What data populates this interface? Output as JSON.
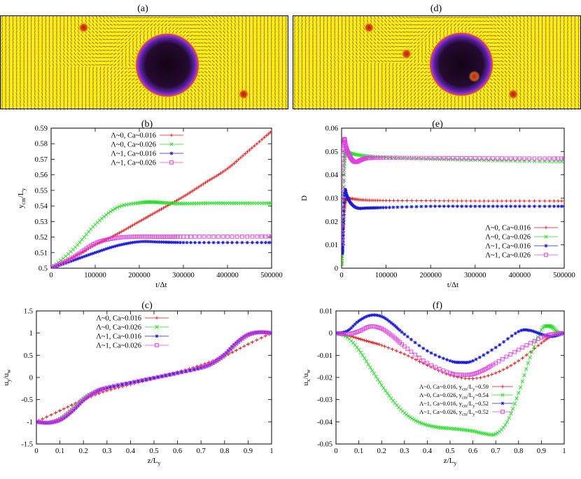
{
  "figure": {
    "panel_labels": [
      "(a)",
      "(d)",
      "(b)",
      "(e)",
      "(c)",
      "(f)"
    ],
    "colors": {
      "red": "#e01010",
      "green": "#22dd22",
      "blue": "#1c1cd6",
      "magenta": "#e040e0",
      "field_yellow": "#ffea1a",
      "arrow_dark": "#6b5a10",
      "droplet_core": "#120414",
      "droplet_rim": "#9a2fd6",
      "defect_red": "#c8141e"
    }
  },
  "chart_data": [
    {
      "id": "a",
      "type": "heatmap",
      "title": "(a)",
      "description_only_visual": true,
      "droplet": {
        "x": 0.58,
        "y": 0.53,
        "r": 0.105
      },
      "defects": [
        {
          "x": 0.29,
          "y": 0.13
        },
        {
          "x": 0.845,
          "y": 0.84
        }
      ]
    },
    {
      "id": "d",
      "type": "heatmap",
      "title": "(d)",
      "droplet": {
        "x": 0.585,
        "y": 0.52,
        "r": 0.105
      },
      "defects": [
        {
          "x": 0.265,
          "y": 0.13
        },
        {
          "x": 0.395,
          "y": 0.41
        },
        {
          "x": 0.63,
          "y": 0.65
        },
        {
          "x": 0.765,
          "y": 0.84
        }
      ]
    },
    {
      "id": "b",
      "type": "line",
      "title": "(b)",
      "xlabel": "t/Δt",
      "ylabel_main": "y",
      "ylabel_sub": "cm",
      "ylabel_tail": "/L",
      "ylabel_sub2": "y",
      "xlim": [
        0,
        500000
      ],
      "ylim": [
        0.5,
        0.59
      ],
      "xticks": [
        "0",
        "100000",
        "200000",
        "300000",
        "400000",
        "500000"
      ],
      "yticks": [
        "0.5",
        "0.51",
        "0.52",
        "0.53",
        "0.54",
        "0.55",
        "0.56",
        "0.57",
        "0.58",
        "0.59"
      ],
      "legend": "top-left",
      "series": [
        {
          "name": "Λ~0, Ca~0.016",
          "color": "red",
          "marker": "plus",
          "x": [
            0,
            50000,
            100000,
            150000,
            200000,
            250000,
            300000,
            350000,
            400000,
            450000,
            500000
          ],
          "y": [
            0.5,
            0.507,
            0.515,
            0.522,
            0.53,
            0.538,
            0.546,
            0.555,
            0.564,
            0.576,
            0.588
          ]
        },
        {
          "name": "Λ~0, Ca~0.026",
          "color": "green",
          "marker": "x",
          "x": [
            0,
            50000,
            100000,
            150000,
            200000,
            230000,
            260000,
            300000,
            350000,
            400000,
            450000,
            500000
          ],
          "y": [
            0.5,
            0.512,
            0.528,
            0.539,
            0.542,
            0.5425,
            0.542,
            0.5415,
            0.5418,
            0.5418,
            0.5418,
            0.5418
          ]
        },
        {
          "name": "Λ~1, Ca~0.016",
          "color": "blue",
          "marker": "star",
          "x": [
            0,
            50000,
            100000,
            150000,
            200000,
            250000,
            300000,
            400000,
            500000
          ],
          "y": [
            0.5,
            0.505,
            0.51,
            0.5145,
            0.517,
            0.5168,
            0.5165,
            0.5165,
            0.5165
          ]
        },
        {
          "name": "Λ~1, Ca~0.026",
          "color": "magenta",
          "marker": "square",
          "x": [
            0,
            50000,
            100000,
            150000,
            200000,
            250000,
            300000,
            400000,
            500000
          ],
          "y": [
            0.5,
            0.507,
            0.516,
            0.5195,
            0.5203,
            0.5202,
            0.5203,
            0.5203,
            0.5204
          ]
        }
      ]
    },
    {
      "id": "e",
      "type": "line",
      "title": "(e)",
      "xlabel": "t/Δt",
      "ylabel_main": "D",
      "xlim": [
        0,
        500000
      ],
      "ylim": [
        0,
        0.06
      ],
      "xticks": [
        "0",
        "100000",
        "200000",
        "300000",
        "400000",
        "500000"
      ],
      "yticks": [
        "0",
        "0.01",
        "0.02",
        "0.03",
        "0.04",
        "0.05",
        "0.06"
      ],
      "legend": "bottom-right",
      "series": [
        {
          "name": "Λ~0, Ca~0.016",
          "color": "red",
          "marker": "plus",
          "x": [
            0,
            3000,
            6000,
            10000,
            20000,
            50000,
            100000,
            200000,
            300000,
            400000,
            500000
          ],
          "y": [
            0.001,
            0.01,
            0.024,
            0.0295,
            0.0298,
            0.0292,
            0.029,
            0.0289,
            0.0288,
            0.0288,
            0.0288
          ]
        },
        {
          "name": "Λ~0, Ca~0.026",
          "color": "green",
          "marker": "x",
          "x": [
            0,
            3000,
            6000,
            10000,
            20000,
            50000,
            100000,
            200000,
            300000,
            400000,
            500000
          ],
          "y": [
            0.0015,
            0.015,
            0.042,
            0.05,
            0.0492,
            0.0482,
            0.0475,
            0.0468,
            0.0463,
            0.0459,
            0.0457
          ]
        },
        {
          "name": "Λ~1, Ca~0.016",
          "color": "blue",
          "marker": "star",
          "x": [
            0,
            2000,
            4000,
            7000,
            12000,
            20000,
            35000,
            60000,
            100000,
            200000,
            300000,
            400000,
            500000
          ],
          "y": [
            0.008,
            0.007,
            0.018,
            0.033,
            0.031,
            0.028,
            0.0258,
            0.0258,
            0.026,
            0.0265,
            0.0265,
            0.0265,
            0.0265
          ]
        },
        {
          "name": "Λ~1, Ca~0.026",
          "color": "magenta",
          "marker": "square",
          "x": [
            0,
            3000,
            6000,
            10000,
            18000,
            30000,
            45000,
            60000,
            100000,
            200000,
            300000,
            400000,
            500000
          ],
          "y": [
            0.0105,
            0.043,
            0.055,
            0.052,
            0.048,
            0.0455,
            0.0465,
            0.0472,
            0.0473,
            0.0472,
            0.0471,
            0.047,
            0.047
          ]
        }
      ]
    },
    {
      "id": "c",
      "type": "line",
      "title": "(c)",
      "xlabel_main": "z/L",
      "xlabel_sub": "y",
      "ylabel_main": "u",
      "ylabel_sub": "y",
      "ylabel_tail": "/u",
      "ylabel_sub2": "w",
      "xlim": [
        0,
        1
      ],
      "ylim": [
        -1.5,
        1.5
      ],
      "xticks": [
        "0",
        "0.1",
        "0.2",
        "0.3",
        "0.4",
        "0.5",
        "0.6",
        "0.7",
        "0.8",
        "0.9",
        "1"
      ],
      "yticks": [
        "-1.5",
        "-1",
        "-0.5",
        "0",
        "0.5",
        "1",
        "1.5"
      ],
      "legend": "top-left",
      "series": [
        {
          "name": "Λ~0, Ca~0.016",
          "color": "red",
          "marker": "plus",
          "x": [
            0,
            0.1,
            0.2,
            0.3,
            0.4,
            0.5,
            0.6,
            0.7,
            0.8,
            0.9,
            1.0
          ],
          "y": [
            -1.0,
            -0.75,
            -0.5,
            -0.3,
            -0.16,
            -0.02,
            0.12,
            0.28,
            0.48,
            0.75,
            1.0
          ]
        },
        {
          "name": "Λ~0, Ca~0.026",
          "color": "green",
          "marker": "x",
          "x": [
            0,
            0.05,
            0.1,
            0.15,
            0.2,
            0.25,
            0.3,
            0.4,
            0.5,
            0.6,
            0.7,
            0.75,
            0.8,
            0.85,
            0.9,
            0.95,
            1.0
          ],
          "y": [
            -1.0,
            -1.02,
            -0.93,
            -0.72,
            -0.47,
            -0.32,
            -0.23,
            -0.12,
            -0.01,
            0.1,
            0.22,
            0.32,
            0.49,
            0.75,
            0.95,
            1.02,
            1.0
          ]
        },
        {
          "name": "Λ~1, Ca~0.016",
          "color": "blue",
          "marker": "star",
          "x": [
            0,
            0.05,
            0.1,
            0.15,
            0.2,
            0.25,
            0.3,
            0.4,
            0.5,
            0.6,
            0.7,
            0.75,
            0.8,
            0.85,
            0.9,
            0.95,
            1.0
          ],
          "y": [
            -1.0,
            -1.03,
            -0.97,
            -0.78,
            -0.52,
            -0.34,
            -0.24,
            -0.12,
            -0.01,
            0.1,
            0.22,
            0.33,
            0.52,
            0.78,
            0.97,
            1.02,
            1.0
          ]
        },
        {
          "name": "Λ~1, Ca~0.026",
          "color": "magenta",
          "marker": "square",
          "x": [
            0,
            0.05,
            0.1,
            0.15,
            0.2,
            0.25,
            0.3,
            0.4,
            0.5,
            0.6,
            0.7,
            0.75,
            0.8,
            0.85,
            0.9,
            0.95,
            1.0
          ],
          "y": [
            -1.0,
            -1.02,
            -0.95,
            -0.75,
            -0.5,
            -0.33,
            -0.23,
            -0.12,
            -0.01,
            0.1,
            0.22,
            0.33,
            0.51,
            0.77,
            0.96,
            1.02,
            1.0
          ]
        }
      ]
    },
    {
      "id": "f",
      "type": "line",
      "title": "(f)",
      "xlabel_main": "z/L",
      "xlabel_sub": "y",
      "ylabel_main": "u",
      "ylabel_sub": "x",
      "ylabel_tail": "/u",
      "ylabel_sub2": "w",
      "xlim": [
        0,
        1
      ],
      "ylim": [
        -0.05,
        0.01
      ],
      "xticks": [
        "0",
        "0.1",
        "0.2",
        "0.3",
        "0.4",
        "0.5",
        "0.6",
        "0.7",
        "0.8",
        "0.9",
        "1"
      ],
      "yticks": [
        "-0.05",
        "-0.04",
        "-0.03",
        "-0.02",
        "-0.01",
        "0",
        "0.01"
      ],
      "legend": "bottom-center",
      "series": [
        {
          "name": "Λ~0, Ca~0.016, y",
          "name_sub": "cm",
          "name_tail": "/L",
          "name_sub2": "y",
          "name_end": "~0.59",
          "color": "red",
          "marker": "plus",
          "x": [
            0,
            0.05,
            0.1,
            0.15,
            0.2,
            0.3,
            0.4,
            0.5,
            0.6,
            0.7,
            0.8,
            0.9,
            0.95,
            1.0
          ],
          "y": [
            0,
            -0.001,
            -0.0025,
            -0.004,
            -0.0055,
            -0.0095,
            -0.0145,
            -0.019,
            -0.0205,
            -0.018,
            -0.0125,
            -0.0045,
            -0.001,
            0
          ]
        },
        {
          "name": "Λ~0, Ca~0.026, y",
          "name_sub": "cm",
          "name_tail": "/L",
          "name_sub2": "y",
          "name_end": "~0.54",
          "color": "green",
          "marker": "x",
          "x": [
            0,
            0.05,
            0.1,
            0.15,
            0.2,
            0.25,
            0.3,
            0.35,
            0.4,
            0.45,
            0.5,
            0.55,
            0.6,
            0.65,
            0.7,
            0.75,
            0.8,
            0.85,
            0.9,
            0.93,
            0.95,
            0.97,
            1.0
          ],
          "y": [
            0,
            -0.002,
            -0.0075,
            -0.0155,
            -0.0235,
            -0.0305,
            -0.036,
            -0.0395,
            -0.0415,
            -0.0425,
            -0.043,
            -0.0435,
            -0.0442,
            -0.0453,
            -0.0455,
            -0.04,
            -0.027,
            -0.011,
            0.0015,
            0.0032,
            0.0025,
            0.0005,
            0
          ]
        },
        {
          "name": "Λ~1, Ca~0.016, y",
          "name_sub": "cm",
          "name_tail": "/L",
          "name_sub2": "y",
          "name_end": "~0.52",
          "color": "blue",
          "marker": "star",
          "x": [
            0,
            0.05,
            0.1,
            0.15,
            0.2,
            0.25,
            0.3,
            0.4,
            0.5,
            0.55,
            0.6,
            0.7,
            0.8,
            0.85,
            0.9,
            0.95,
            1.0
          ],
          "y": [
            0,
            0.001,
            0.0055,
            0.008,
            0.0075,
            0.004,
            -0.0005,
            -0.008,
            -0.0125,
            -0.0132,
            -0.0125,
            -0.0065,
            0.0007,
            0.0012,
            -0.0005,
            -0.0015,
            0
          ]
        },
        {
          "name": "Λ~1, Ca~0.026, y",
          "name_sub": "cm",
          "name_tail": "/L",
          "name_sub2": "y",
          "name_end": "~0.52",
          "color": "magenta",
          "marker": "square",
          "x": [
            0,
            0.05,
            0.1,
            0.15,
            0.2,
            0.25,
            0.3,
            0.4,
            0.5,
            0.55,
            0.6,
            0.65,
            0.7,
            0.8,
            0.9,
            0.95,
            1.0
          ],
          "y": [
            0,
            -0.0005,
            0.0008,
            0.003,
            0.002,
            -0.0015,
            -0.006,
            -0.0135,
            -0.018,
            -0.0188,
            -0.0185,
            -0.0165,
            -0.0135,
            -0.0075,
            -0.002,
            -0.0005,
            0
          ]
        }
      ]
    }
  ]
}
